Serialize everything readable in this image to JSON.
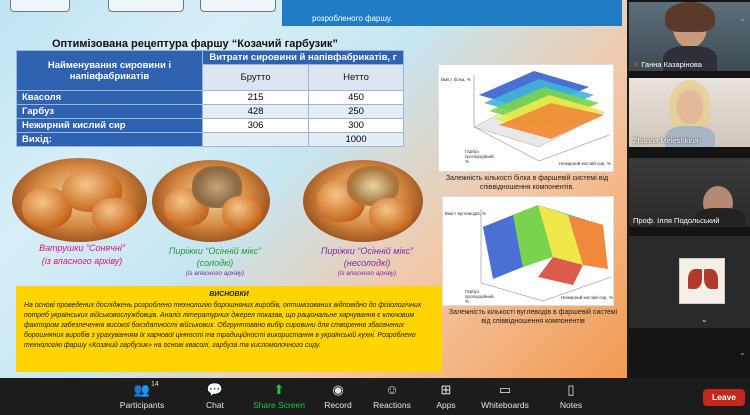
{
  "slide": {
    "top_text": "розробленого фаршу.",
    "title": "Оптимізована рецептура фаршу “Козачий гарбузик”",
    "table": {
      "col_name": "Найменування сировини і напівфабрикатів",
      "col_group": "Витрати сировини й напівфабрикатів, г",
      "sub_gross": "Брутто",
      "sub_net": "Нетто",
      "rows": [
        {
          "name": "Квасоля",
          "gross": "215",
          "net": "450"
        },
        {
          "name": "Гарбуз",
          "gross": "428",
          "net": "250"
        },
        {
          "name": "Нежирний кислий сир",
          "gross": "306",
          "net": "300"
        },
        {
          "name": "Вихід:",
          "gross": "",
          "net": "1000"
        }
      ]
    },
    "captions": {
      "c1_title": "Ватрушки “Сонячні”",
      "c1_sub": "(із власного архіву)",
      "c2_title": "Пиріжки “Осінній мікс”",
      "c2_sub": "(солодкі)",
      "c2_note": "(із власного архіву)",
      "c3_title": "Пиріжки “Осінній мікс”",
      "c3_sub": "(несолодкі)",
      "c3_note": "(із власного архіву)"
    },
    "chart1": {
      "z_label": "Вміст білка, %",
      "x_label": "Гарбуз пропорційний, %",
      "y_label": "Нежирний кислий сир, %",
      "caption": "Залежність кількості білка в фаршевій системі від співвідношення компонентів."
    },
    "chart2": {
      "z_label": "Вміст вуглеводів, %",
      "x_label": "Гарбуз пропорційний, %",
      "y_label": "Нежирний кислий сир, %",
      "caption": "Залежність кількості вуглеводів в фаршевій системі від співвідношення компонентів"
    },
    "conclusion": {
      "heading": "ВИСНОВКИ",
      "text": "На основі проведених досліджень розроблено технологію борошняних виробів, оптимізованих відповідно до фізіологічних потреб українських військовослужбовців. Аналіз літературних джерел показав, що раціональне харчування є ключовим фактором забезпечення високої боєздатності військових. Обгрунтовано вибір сировини для створення збагачених борошняних виробів з урахуванням їх харчової цінності та традиційності використання в українській кухні. Розроблено технологію фаршу «Козачий гарбузик» на основі квасолі, гарбуза та кисломолочного сиру."
    }
  },
  "participants": [
    {
      "name": "Ганна Казарінова",
      "muted": true
    },
    {
      "name": "Zhanna Meleshkina",
      "muted": false
    },
    {
      "name": "Проф. Ілля Подольський",
      "muted": false
    },
    {
      "name": "",
      "muted": false
    }
  ],
  "toolbar": {
    "participants_label": "Participants",
    "participants_count": "14",
    "chat_label": "Chat",
    "share_label": "Share Screen",
    "record_label": "Record",
    "reactions_label": "Reactions",
    "apps_label": "Apps",
    "whiteboards_label": "Whiteboards",
    "notes_label": "Notes",
    "leave_label": "Leave",
    "share_color": "#1fc44b",
    "leave_color": "#c2281e"
  }
}
